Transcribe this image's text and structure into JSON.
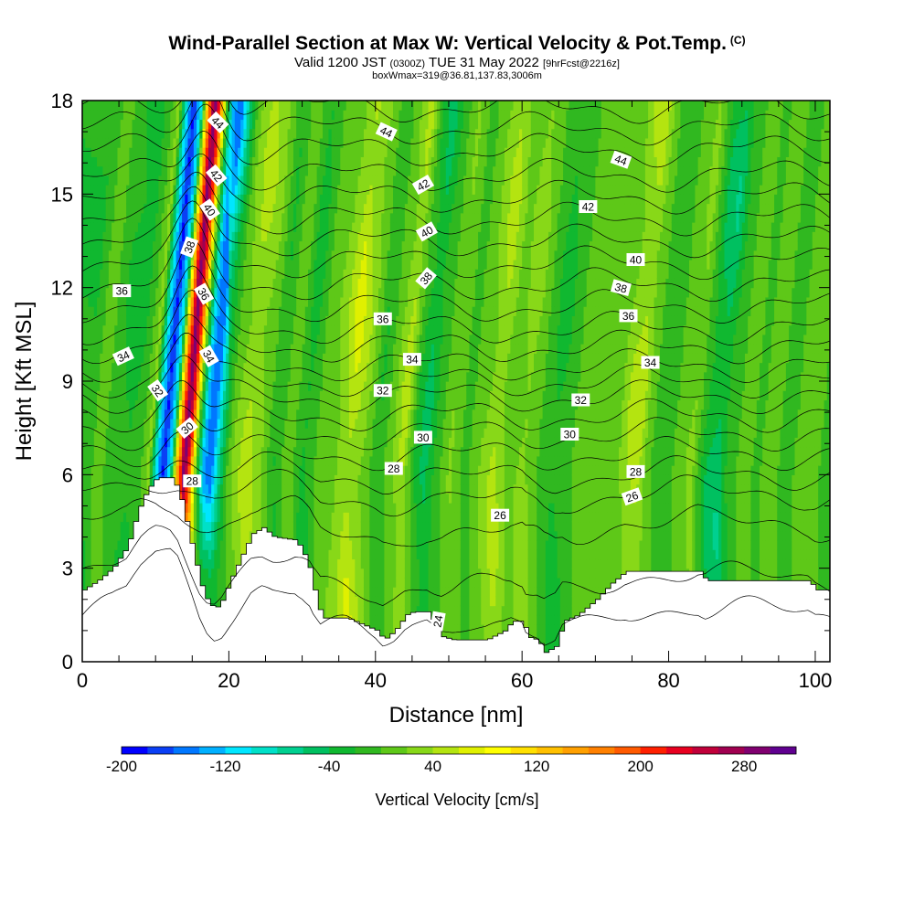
{
  "chart_data": {
    "type": "heatmap",
    "title": "Wind-Parallel Section at Max W: Vertical Velocity & Pot.Temp.",
    "title_mark": "(C)",
    "subtitle_main": "Valid 1200 JST",
    "subtitle_utc": "(0300Z)",
    "subtitle_date": "TUE 31 May 2022",
    "subtitle_fcst": "[9hrFcst@2216z]",
    "subtitle2": "boxWmax=319@36.81,137.83,3006m",
    "xlabel": "Distance [nm]",
    "ylabel": "Height [Kft MSL]",
    "xlim": [
      0,
      102
    ],
    "ylim": [
      0,
      18
    ],
    "x_ticks": [
      "0",
      "20",
      "40",
      "60",
      "80",
      "100"
    ],
    "y_ticks": [
      "0",
      "3",
      "6",
      "9",
      "12",
      "15",
      "18"
    ],
    "colorbar": {
      "title": "Vertical Velocity [cm/s]",
      "min": -200,
      "max": 320,
      "labels": [
        "-200",
        "-120",
        "-40",
        "40",
        "120",
        "200",
        "280"
      ],
      "label_values": [
        -200,
        -120,
        -40,
        40,
        120,
        200,
        280
      ],
      "colors": [
        "#0000ff",
        "#0a3ff5",
        "#0077ff",
        "#00b0ff",
        "#00e6ff",
        "#00e0c8",
        "#00d090",
        "#00c060",
        "#10b830",
        "#30b820",
        "#5ec818",
        "#88d818",
        "#b4e410",
        "#e0f000",
        "#ffff00",
        "#ffe000",
        "#ffc000",
        "#ffa000",
        "#ff8000",
        "#ff5a00",
        "#ff2000",
        "#e80020",
        "#c0003a",
        "#a00050",
        "#800070",
        "#600090"
      ]
    },
    "field_w_columns": [
      {
        "x": 0,
        "w": -25
      },
      {
        "x": 2,
        "w": 15
      },
      {
        "x": 4,
        "w": -20
      },
      {
        "x": 6,
        "w": -35
      },
      {
        "x": 7.5,
        "w": -15
      },
      {
        "x": 9,
        "w": 30
      },
      {
        "x": 10,
        "w": -105
      },
      {
        "x": 11,
        "w": -185
      },
      {
        "x": 12,
        "w": -95
      },
      {
        "x": 12.8,
        "w": 120
      },
      {
        "x": 13.8,
        "w": 300
      },
      {
        "x": 14.6,
        "w": 190
      },
      {
        "x": 15.4,
        "w": 10
      },
      {
        "x": 16.4,
        "w": -130
      },
      {
        "x": 17.4,
        "w": -160
      },
      {
        "x": 18.6,
        "w": -65
      },
      {
        "x": 20,
        "w": 15
      },
      {
        "x": 22,
        "w": 55
      },
      {
        "x": 24,
        "w": 30
      },
      {
        "x": 26,
        "w": -25
      },
      {
        "x": 28,
        "w": 20
      },
      {
        "x": 30,
        "w": -40
      },
      {
        "x": 32,
        "w": 10
      },
      {
        "x": 34,
        "w": 25
      },
      {
        "x": 36,
        "w": 75
      },
      {
        "x": 38,
        "w": 35
      },
      {
        "x": 40,
        "w": -25
      },
      {
        "x": 42,
        "w": 20
      },
      {
        "x": 43.5,
        "w": 60
      },
      {
        "x": 45,
        "w": -20
      },
      {
        "x": 46.5,
        "w": -55
      },
      {
        "x": 48,
        "w": -15
      },
      {
        "x": 50,
        "w": 25
      },
      {
        "x": 52,
        "w": -10
      },
      {
        "x": 54,
        "w": 20
      },
      {
        "x": 56,
        "w": 55
      },
      {
        "x": 58,
        "w": 10
      },
      {
        "x": 60,
        "w": 40
      },
      {
        "x": 62,
        "w": 0
      },
      {
        "x": 64,
        "w": -35
      },
      {
        "x": 66,
        "w": -10
      },
      {
        "x": 68,
        "w": 20
      },
      {
        "x": 70,
        "w": 10
      },
      {
        "x": 72,
        "w": 0
      },
      {
        "x": 74,
        "w": 45
      },
      {
        "x": 75.5,
        "w": 60
      },
      {
        "x": 77,
        "w": 5
      },
      {
        "x": 79,
        "w": -15
      },
      {
        "x": 81,
        "w": 5
      },
      {
        "x": 83,
        "w": 30
      },
      {
        "x": 85,
        "w": -45
      },
      {
        "x": 86.5,
        "w": -65
      },
      {
        "x": 88,
        "w": -15
      },
      {
        "x": 90,
        "w": 10
      },
      {
        "x": 92,
        "w": -5
      },
      {
        "x": 94,
        "w": 15
      },
      {
        "x": 96,
        "w": -20
      },
      {
        "x": 98,
        "w": 20
      },
      {
        "x": 100,
        "w": 5
      },
      {
        "x": 102,
        "w": -15
      }
    ],
    "terrain_kft": [
      {
        "x": 0,
        "z": 2.3
      },
      {
        "x": 2,
        "z": 2.6
      },
      {
        "x": 4,
        "z": 3.0
      },
      {
        "x": 6,
        "z": 3.7
      },
      {
        "x": 7,
        "z": 4.5
      },
      {
        "x": 8,
        "z": 5.2
      },
      {
        "x": 9,
        "z": 5.6
      },
      {
        "x": 10,
        "z": 5.9
      },
      {
        "x": 12,
        "z": 5.9
      },
      {
        "x": 13,
        "z": 5.5
      },
      {
        "x": 14,
        "z": 4.5
      },
      {
        "x": 15,
        "z": 3.5
      },
      {
        "x": 16,
        "z": 2.5
      },
      {
        "x": 17,
        "z": 1.9
      },
      {
        "x": 18,
        "z": 1.7
      },
      {
        "x": 19,
        "z": 2.0
      },
      {
        "x": 20,
        "z": 2.6
      },
      {
        "x": 21,
        "z": 3.1
      },
      {
        "x": 22,
        "z": 3.6
      },
      {
        "x": 23,
        "z": 4.1
      },
      {
        "x": 24.5,
        "z": 4.3
      },
      {
        "x": 26,
        "z": 4.0
      },
      {
        "x": 29,
        "z": 3.9
      },
      {
        "x": 30,
        "z": 3.5
      },
      {
        "x": 31,
        "z": 2.9
      },
      {
        "x": 31.5,
        "z": 2.3
      },
      {
        "x": 32.5,
        "z": 1.4
      },
      {
        "x": 36,
        "z": 1.4
      },
      {
        "x": 38,
        "z": 1.2
      },
      {
        "x": 40,
        "z": 1.0
      },
      {
        "x": 41,
        "z": 0.7
      },
      {
        "x": 42.5,
        "z": 1.0
      },
      {
        "x": 44,
        "z": 1.5
      },
      {
        "x": 45,
        "z": 1.6
      },
      {
        "x": 47,
        "z": 1.6
      },
      {
        "x": 48,
        "z": 1.2
      },
      {
        "x": 49,
        "z": 0.8
      },
      {
        "x": 50.5,
        "z": 0.7
      },
      {
        "x": 55,
        "z": 0.7
      },
      {
        "x": 57.5,
        "z": 1.0
      },
      {
        "x": 58.5,
        "z": 1.3
      },
      {
        "x": 60,
        "z": 1.3
      },
      {
        "x": 60.5,
        "z": 0.8
      },
      {
        "x": 62,
        "z": 0.7
      },
      {
        "x": 63,
        "z": 0.3
      },
      {
        "x": 64.5,
        "z": 0.5
      },
      {
        "x": 65.5,
        "z": 1.3
      },
      {
        "x": 67.5,
        "z": 1.5
      },
      {
        "x": 70,
        "z": 2.0
      },
      {
        "x": 72,
        "z": 2.5
      },
      {
        "x": 74,
        "z": 2.9
      },
      {
        "x": 76,
        "z": 2.9
      },
      {
        "x": 80,
        "z": 2.9
      },
      {
        "x": 84,
        "z": 2.9
      },
      {
        "x": 85,
        "z": 2.6
      },
      {
        "x": 87,
        "z": 2.6
      },
      {
        "x": 91,
        "z": 2.6
      },
      {
        "x": 99,
        "z": 2.6
      },
      {
        "x": 100,
        "z": 2.3
      },
      {
        "x": 102,
        "z": 2.3
      }
    ],
    "isentropes": [
      {
        "theta": 24,
        "z0": 0.2
      },
      {
        "theta": 25,
        "z0": 1.6
      },
      {
        "theta": 26,
        "z0": 3.8
      },
      {
        "theta": 27,
        "z0": 5.0
      },
      {
        "theta": 28,
        "z0": 5.8
      },
      {
        "theta": 29,
        "z0": 6.6
      },
      {
        "theta": 30,
        "z0": 7.3
      },
      {
        "theta": 31,
        "z0": 7.9
      },
      {
        "theta": 32,
        "z0": 8.5
      },
      {
        "theta": 33,
        "z0": 9.0
      },
      {
        "theta": 34,
        "z0": 9.5
      },
      {
        "theta": 35,
        "z0": 10.1
      },
      {
        "theta": 36,
        "z0": 10.7
      },
      {
        "theta": 37,
        "z0": 11.4
      },
      {
        "theta": 38,
        "z0": 12.1
      },
      {
        "theta": 39,
        "z0": 12.8
      },
      {
        "theta": 40,
        "z0": 13.5
      },
      {
        "theta": 41,
        "z0": 14.2
      },
      {
        "theta": 42,
        "z0": 14.9
      },
      {
        "theta": 43,
        "z0": 15.6
      },
      {
        "theta": 44,
        "z0": 16.4
      },
      {
        "theta": 45,
        "z0": 17.1
      },
      {
        "theta": 46,
        "z0": 17.8
      }
    ],
    "contour_labels": [
      {
        "text": "44",
        "x": 18.5,
        "y": 17.3,
        "rot": 45
      },
      {
        "text": "44",
        "x": 41.5,
        "y": 17.0,
        "rot": 25
      },
      {
        "text": "44",
        "x": 73.5,
        "y": 16.1,
        "rot": 20
      },
      {
        "text": "42",
        "x": 18.3,
        "y": 15.6,
        "rot": 50
      },
      {
        "text": "42",
        "x": 46.5,
        "y": 15.3,
        "rot": -30
      },
      {
        "text": "42",
        "x": 69.0,
        "y": 14.6,
        "rot": 0
      },
      {
        "text": "40",
        "x": 17.4,
        "y": 14.5,
        "rot": 55
      },
      {
        "text": "40",
        "x": 47.0,
        "y": 13.8,
        "rot": -30
      },
      {
        "text": "40",
        "x": 75.5,
        "y": 12.9,
        "rot": 0
      },
      {
        "text": "38",
        "x": 14.6,
        "y": 13.3,
        "rot": -70
      },
      {
        "text": "38",
        "x": 46.9,
        "y": 12.3,
        "rot": -50
      },
      {
        "text": "38",
        "x": 73.5,
        "y": 12.0,
        "rot": 15
      },
      {
        "text": "36",
        "x": 5.4,
        "y": 11.9,
        "rot": 0
      },
      {
        "text": "36",
        "x": 16.6,
        "y": 11.8,
        "rot": 60
      },
      {
        "text": "36",
        "x": 41.0,
        "y": 11.0,
        "rot": 0
      },
      {
        "text": "36",
        "x": 74.5,
        "y": 11.1,
        "rot": 0
      },
      {
        "text": "34",
        "x": 5.6,
        "y": 9.8,
        "rot": -25
      },
      {
        "text": "34",
        "x": 17.3,
        "y": 9.8,
        "rot": 60
      },
      {
        "text": "34",
        "x": 45.0,
        "y": 9.7,
        "rot": 0
      },
      {
        "text": "34",
        "x": 77.5,
        "y": 9.6,
        "rot": 0
      },
      {
        "text": "32",
        "x": 10.3,
        "y": 8.7,
        "rot": 55
      },
      {
        "text": "32",
        "x": 41.0,
        "y": 8.7,
        "rot": 0
      },
      {
        "text": "32",
        "x": 68.0,
        "y": 8.4,
        "rot": 0
      },
      {
        "text": "30",
        "x": 14.3,
        "y": 7.5,
        "rot": -40
      },
      {
        "text": "30",
        "x": 46.5,
        "y": 7.2,
        "rot": 0
      },
      {
        "text": "30",
        "x": 66.5,
        "y": 7.3,
        "rot": 0
      },
      {
        "text": "28",
        "x": 15.0,
        "y": 5.8,
        "rot": 0
      },
      {
        "text": "28",
        "x": 42.5,
        "y": 6.2,
        "rot": 0
      },
      {
        "text": "28",
        "x": 75.5,
        "y": 6.1,
        "rot": 0
      },
      {
        "text": "26",
        "x": 57.0,
        "y": 4.7,
        "rot": 0
      },
      {
        "text": "26",
        "x": 75.0,
        "y": 5.3,
        "rot": -20
      },
      {
        "text": "24",
        "x": 48.5,
        "y": 1.3,
        "rot": -80
      }
    ]
  }
}
